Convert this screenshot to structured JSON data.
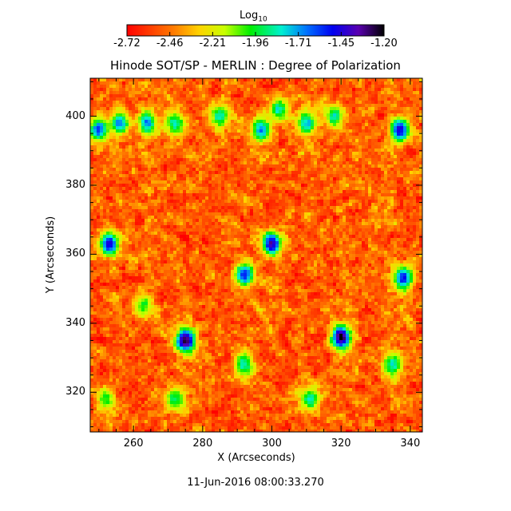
{
  "colorbar": {
    "label_base": "Log",
    "label_sub": "10",
    "ticks": [
      "-2.72",
      "-2.46",
      "-2.21",
      "-1.96",
      "-1.71",
      "-1.45",
      "-1.20"
    ],
    "range": [
      -2.72,
      -1.2
    ]
  },
  "title": "Hinode SOT/SP - MERLIN : Degree of Polarization",
  "xlabel": "X (Arcseconds)",
  "ylabel": "Y (Arcseconds)",
  "x_ticks": [
    "260",
    "280",
    "300",
    "320",
    "340"
  ],
  "y_ticks": [
    "320",
    "340",
    "360",
    "380",
    "400"
  ],
  "x_range": [
    247.5,
    343.5
  ],
  "y_range": [
    308.5,
    411
  ],
  "timestamp": "11-Jun-2016 08:00:33.270",
  "map": {
    "pixel_size": 4,
    "background_level": 0.14,
    "blobs": [
      {
        "x": 275,
        "y": 335,
        "peak": 1.0
      },
      {
        "x": 320,
        "y": 336,
        "peak": 1.0
      },
      {
        "x": 253,
        "y": 363,
        "peak": 0.85
      },
      {
        "x": 300,
        "y": 363,
        "peak": 0.9
      },
      {
        "x": 292,
        "y": 354,
        "peak": 0.8
      },
      {
        "x": 338,
        "y": 353,
        "peak": 0.8
      },
      {
        "x": 250,
        "y": 396,
        "peak": 0.75
      },
      {
        "x": 256,
        "y": 398,
        "peak": 0.7
      },
      {
        "x": 264,
        "y": 398,
        "peak": 0.7
      },
      {
        "x": 272,
        "y": 398,
        "peak": 0.6
      },
      {
        "x": 285,
        "y": 400,
        "peak": 0.6
      },
      {
        "x": 297,
        "y": 396,
        "peak": 0.7
      },
      {
        "x": 302,
        "y": 402,
        "peak": 0.6
      },
      {
        "x": 310,
        "y": 398,
        "peak": 0.65
      },
      {
        "x": 318,
        "y": 400,
        "peak": 0.6
      },
      {
        "x": 337,
        "y": 396,
        "peak": 0.85
      },
      {
        "x": 335,
        "y": 328,
        "peak": 0.6
      },
      {
        "x": 292,
        "y": 328,
        "peak": 0.6
      },
      {
        "x": 311,
        "y": 318,
        "peak": 0.6
      },
      {
        "x": 272,
        "y": 318,
        "peak": 0.55
      },
      {
        "x": 263,
        "y": 345,
        "peak": 0.5
      },
      {
        "x": 252,
        "y": 318,
        "peak": 0.5
      }
    ]
  }
}
